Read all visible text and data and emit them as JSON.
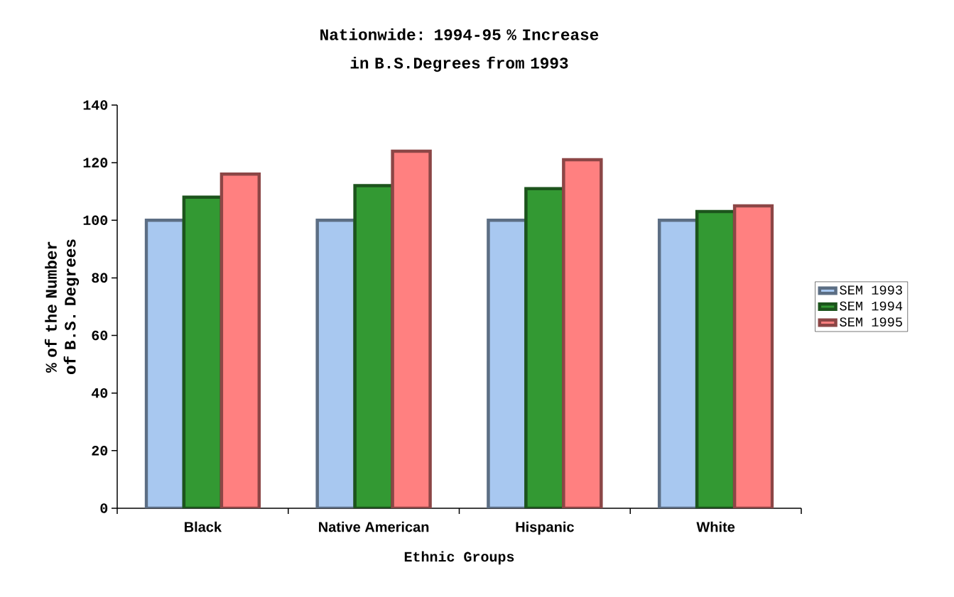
{
  "chart_data": {
    "type": "bar",
    "title": "Nationwide: 1994-95 % Increase in B.S.Degrees from 1993",
    "xlabel": "Ethnic Groups",
    "ylabel": "% of the Number of B.S. Degrees",
    "categories": [
      "Black",
      "Native American",
      "Hispanic",
      "White"
    ],
    "series": [
      {
        "name": "SEM 1993",
        "color": "#a8c8f0",
        "values": [
          100,
          100,
          100,
          100
        ]
      },
      {
        "name": "SEM 1994",
        "color": "#339933",
        "values": [
          108,
          112,
          111,
          103
        ]
      },
      {
        "name": "SEM 1995",
        "color": "#ff8080",
        "values": [
          116,
          124,
          121,
          105
        ]
      }
    ],
    "ylim": [
      0,
      140
    ],
    "yticks": [
      0,
      20,
      40,
      60,
      80,
      100,
      120,
      140
    ],
    "grid": false,
    "legend": "right"
  }
}
